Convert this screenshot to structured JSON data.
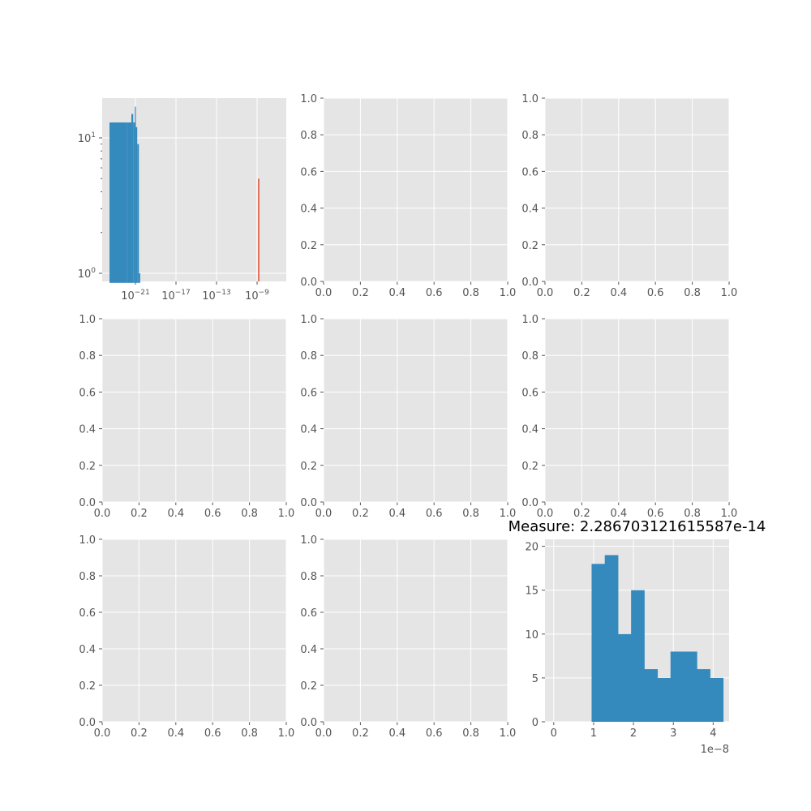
{
  "colors": {
    "axes_bg": "#e5e5e5",
    "grid": "#ffffff",
    "tick": "#555555",
    "bar_blue": "#348abd",
    "line_red": "#e24a33"
  },
  "chart_data": [
    {
      "panel": "row1-col1",
      "type": "bar",
      "xscale": "log",
      "yscale": "log",
      "grid": true,
      "x_tick_labels": [
        "10^-21",
        "10^-17",
        "10^-13",
        "10^-9"
      ],
      "y_tick_labels": [
        "10^0",
        "10^1"
      ],
      "bars": [
        {
          "x_start": 2e-25,
          "x_end": 1.5e-22,
          "count": 13
        },
        {
          "x_start": 1.5e-22,
          "x_end": 4e-22,
          "count": 13
        },
        {
          "x_start": 4e-22,
          "x_end": 6e-22,
          "count": 15
        },
        {
          "x_start": 6e-22,
          "x_end": 9e-22,
          "count": 13
        },
        {
          "x_start": 9e-22,
          "x_end": 1.1e-21,
          "count": 17
        },
        {
          "x_start": 1.1e-21,
          "x_end": 1.5e-21,
          "count": 12
        },
        {
          "x_start": 1.5e-21,
          "x_end": 2.2e-21,
          "count": 9
        },
        {
          "x_start": 2.2e-21,
          "x_end": 3e-21,
          "count": 1
        }
      ],
      "red_line": {
        "x": 1e-09,
        "top": 5
      }
    },
    {
      "panel": "row1-col2",
      "type": "empty",
      "x_tick_labels": [
        "0.0",
        "0.2",
        "0.4",
        "0.6",
        "0.8",
        "1.0"
      ],
      "y_tick_labels": [
        "0.0",
        "0.2",
        "0.4",
        "0.6",
        "0.8",
        "1.0"
      ]
    },
    {
      "panel": "row1-col3",
      "type": "empty",
      "x_tick_labels": [
        "0.0",
        "0.2",
        "0.4",
        "0.6",
        "0.8",
        "1.0"
      ],
      "y_tick_labels": [
        "0.0",
        "0.2",
        "0.4",
        "0.6",
        "0.8",
        "1.0"
      ]
    },
    {
      "panel": "row2-col1",
      "type": "empty",
      "x_tick_labels": [
        "0.0",
        "0.2",
        "0.4",
        "0.6",
        "0.8",
        "1.0"
      ],
      "y_tick_labels": [
        "0.0",
        "0.2",
        "0.4",
        "0.6",
        "0.8",
        "1.0"
      ]
    },
    {
      "panel": "row2-col2",
      "type": "empty",
      "x_tick_labels": [
        "0.0",
        "0.2",
        "0.4",
        "0.6",
        "0.8",
        "1.0"
      ],
      "y_tick_labels": [
        "0.0",
        "0.2",
        "0.4",
        "0.6",
        "0.8",
        "1.0"
      ]
    },
    {
      "panel": "row2-col3",
      "type": "empty",
      "x_tick_labels": [
        "0.0",
        "0.2",
        "0.4",
        "0.6",
        "0.8",
        "1.0"
      ],
      "y_tick_labels": [
        "0.0",
        "0.2",
        "0.4",
        "0.6",
        "0.8",
        "1.0"
      ]
    },
    {
      "panel": "row3-col1",
      "type": "empty",
      "x_tick_labels": [
        "0.0",
        "0.2",
        "0.4",
        "0.6",
        "0.8",
        "1.0"
      ],
      "y_tick_labels": [
        "0.0",
        "0.2",
        "0.4",
        "0.6",
        "0.8",
        "1.0"
      ]
    },
    {
      "panel": "row3-col2",
      "type": "empty",
      "x_tick_labels": [
        "0.0",
        "0.2",
        "0.4",
        "0.6",
        "0.8",
        "1.0"
      ],
      "y_tick_labels": [
        "0.0",
        "0.2",
        "0.4",
        "0.6",
        "0.8",
        "1.0"
      ]
    },
    {
      "panel": "row3-col3",
      "type": "bar",
      "title": "Measure: 2.286703121615587e-14",
      "xlim": [
        -2.2e-09,
        4.4e-08
      ],
      "ylim": [
        0,
        20.8
      ],
      "grid": true,
      "x_ticks": [
        0,
        1e-08,
        2e-08,
        3e-08,
        4e-08
      ],
      "x_tick_labels": [
        "0",
        "1",
        "2",
        "3",
        "4"
      ],
      "y_ticks": [
        0,
        5,
        10,
        15,
        20
      ],
      "y_tick_labels": [
        "0",
        "5",
        "10",
        "15",
        "20"
      ],
      "offset_text": "1e−8",
      "bin_edges": [
        9.5e-09,
        1.28e-08,
        1.61e-08,
        1.94e-08,
        2.27e-08,
        2.6e-08,
        2.93e-08,
        3.26e-08,
        3.59e-08,
        3.92e-08,
        4.25e-08
      ],
      "counts": [
        18,
        19,
        10,
        15,
        6,
        5,
        8,
        8,
        6,
        5
      ]
    }
  ]
}
